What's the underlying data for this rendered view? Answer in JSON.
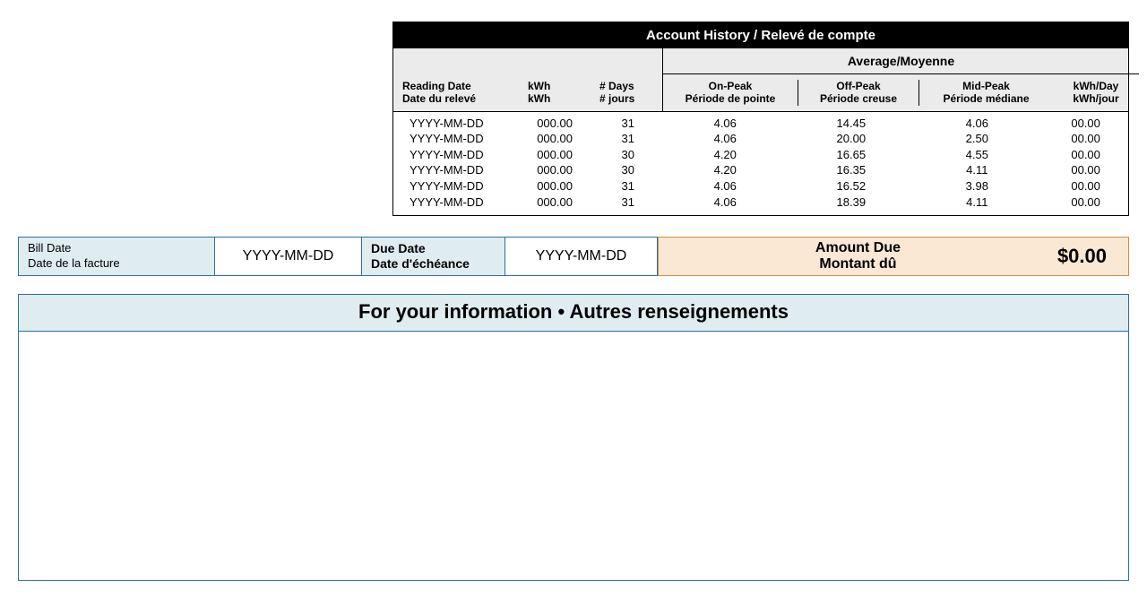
{
  "colors": {
    "table_header_bg": "#000000",
    "table_header_text": "#ffffff",
    "table_subheader_bg": "#ebebeb",
    "border_black": "#000000",
    "blue_border": "#2a6fa8",
    "blue_bg": "#dfecf0",
    "peach_bg": "#fbe8d4",
    "peach_border": "#d98c3a",
    "page_bg": "#ffffff"
  },
  "history": {
    "title": "Account History / Relevé de compte",
    "average_label": "Average/Moyenne",
    "columns": {
      "reading_en": "Reading Date",
      "reading_fr": "Date du relevé",
      "kwh_en": "kWh",
      "kwh_fr": "kWh",
      "days_en": "# Days",
      "days_fr": "# jours",
      "onpeak_en": "On-Peak",
      "onpeak_fr": "Période de pointe",
      "offpeak_en": "Off-Peak",
      "offpeak_fr": "Période creuse",
      "midpeak_en": "Mid-Peak",
      "midpeak_fr": "Période médiane",
      "kwhday_en": "kWh/Day",
      "kwhday_fr": "kWh/jour"
    },
    "rows": [
      {
        "reading": "YYYY-MM-DD",
        "kwh": "000.00",
        "days": "31",
        "onpeak": "4.06",
        "offpeak": "14.45",
        "midpeak": "4.06",
        "kwhday": "00.00"
      },
      {
        "reading": "YYYY-MM-DD",
        "kwh": "000.00",
        "days": "31",
        "onpeak": "4.06",
        "offpeak": "20.00",
        "midpeak": "2.50",
        "kwhday": "00.00"
      },
      {
        "reading": "YYYY-MM-DD",
        "kwh": "000.00",
        "days": "30",
        "onpeak": "4.20",
        "offpeak": "16.65",
        "midpeak": "4.55",
        "kwhday": "00.00"
      },
      {
        "reading": "YYYY-MM-DD",
        "kwh": "000.00",
        "days": "30",
        "onpeak": "4.20",
        "offpeak": "16.35",
        "midpeak": "4.11",
        "kwhday": "00.00"
      },
      {
        "reading": "YYYY-MM-DD",
        "kwh": "000.00",
        "days": "31",
        "onpeak": "4.06",
        "offpeak": "16.52",
        "midpeak": "3.98",
        "kwhday": "00.00"
      },
      {
        "reading": "YYYY-MM-DD",
        "kwh": "000.00",
        "days": "31",
        "onpeak": "4.06",
        "offpeak": "18.39",
        "midpeak": "4.11",
        "kwhday": "00.00"
      }
    ]
  },
  "billbar": {
    "bill_date_en": "Bill Date",
    "bill_date_fr": "Date de la facture",
    "bill_date_value": "YYYY-MM-DD",
    "due_date_en": "Due Date",
    "due_date_fr": "Date d'échéance",
    "due_date_value": "YYYY-MM-DD",
    "amount_due_en": "Amount Due",
    "amount_due_fr": "Montant dû",
    "amount_value": "$0.00"
  },
  "info": {
    "title": "For your information • Autres renseignements"
  }
}
